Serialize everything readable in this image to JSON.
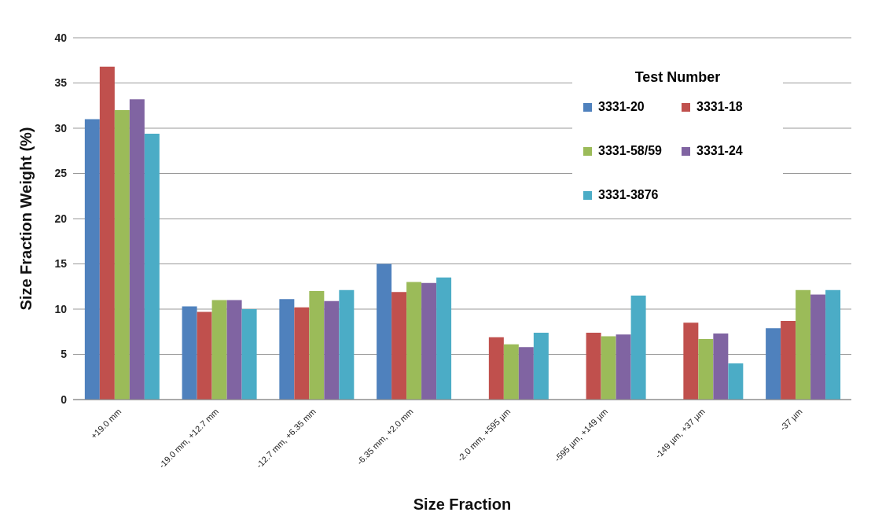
{
  "chart_data": {
    "type": "bar",
    "xlabel": "Size Fraction",
    "ylabel": "Size Fraction Weight (%)",
    "legend_title": "Test Number",
    "categories": [
      "+19.0 mm",
      "-19.0 mm, +12.7 mm",
      "-12.7 mm, +6.35 mm",
      "-6.35 mm, +2.0 mm",
      "-2.0 mm, +595 µm",
      "-595 µm, +149 µm",
      "-149 µm, +37 µm",
      "-37 µm"
    ],
    "series": [
      {
        "name": "3331-20",
        "color": "#4f81bd",
        "values": [
          31.0,
          10.3,
          11.1,
          15.0,
          null,
          null,
          null,
          7.9
        ]
      },
      {
        "name": "3331-18",
        "color": "#c0504d",
        "values": [
          36.8,
          9.7,
          10.2,
          11.9,
          6.9,
          7.4,
          8.5,
          8.7
        ]
      },
      {
        "name": "3331-58/59",
        "color": "#9bbb59",
        "values": [
          32.0,
          11.0,
          12.0,
          13.0,
          6.1,
          7.0,
          6.7,
          12.1
        ]
      },
      {
        "name": "3331-24",
        "color": "#8064a2",
        "values": [
          33.2,
          11.0,
          10.9,
          12.9,
          5.8,
          7.2,
          7.3,
          11.6
        ]
      },
      {
        "name": "3331-3876",
        "color": "#4bacc6",
        "values": [
          29.4,
          10.0,
          12.1,
          13.5,
          7.4,
          11.5,
          4.0,
          12.1
        ]
      }
    ],
    "ylim": [
      0,
      40
    ],
    "yticks": [
      0,
      5,
      10,
      15,
      20,
      25,
      30,
      35,
      40
    ],
    "grid": "y",
    "legend": "top right"
  }
}
